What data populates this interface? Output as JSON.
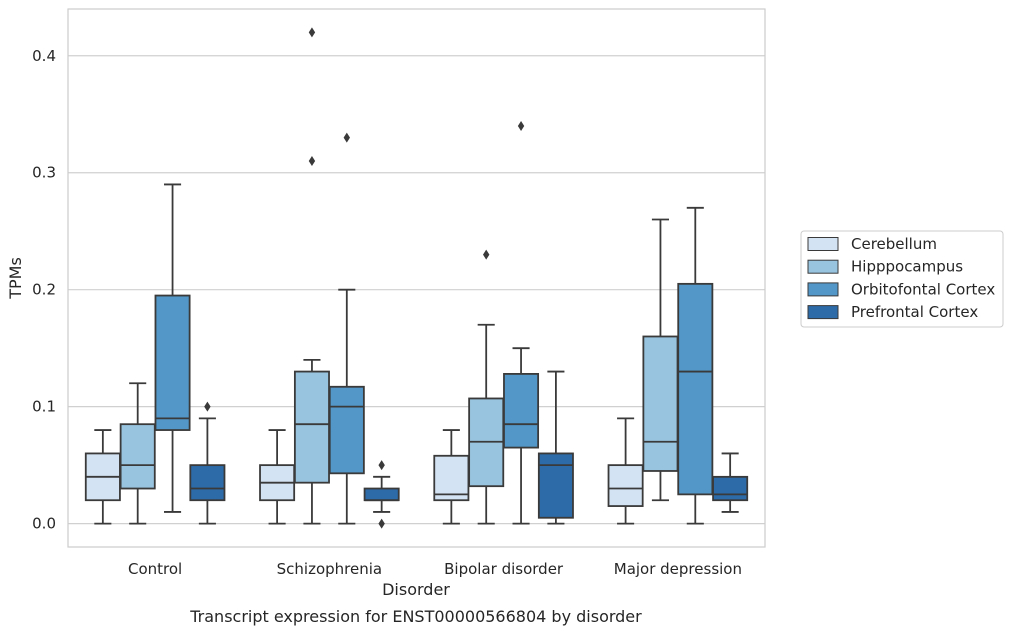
{
  "chart_data": {
    "type": "box",
    "title": "",
    "caption": "Transcript expression for ENST00000566804 by disorder",
    "xlabel": "Disorder",
    "ylabel": "TPMs",
    "ylim": [
      -0.02,
      0.44
    ],
    "yticks": [
      0.0,
      0.1,
      0.2,
      0.3,
      0.4
    ],
    "ytick_labels": [
      "0.0",
      "0.1",
      "0.2",
      "0.3",
      "0.4"
    ],
    "grid": "horizontal",
    "legend_position": "right",
    "categories": [
      "Control",
      "Schizophrenia",
      "Bipolar disorder",
      "Major depression"
    ],
    "series": [
      {
        "name": "Cerebellum",
        "color": "#d4e3f3",
        "boxes": [
          {
            "whislo": 0.0,
            "q1": 0.02,
            "med": 0.04,
            "q3": 0.06,
            "whishi": 0.08,
            "fliers": []
          },
          {
            "whislo": 0.0,
            "q1": 0.02,
            "med": 0.035,
            "q3": 0.05,
            "whishi": 0.08,
            "fliers": []
          },
          {
            "whislo": 0.0,
            "q1": 0.02,
            "med": 0.025,
            "q3": 0.058,
            "whishi": 0.08,
            "fliers": []
          },
          {
            "whislo": 0.0,
            "q1": 0.015,
            "med": 0.03,
            "q3": 0.05,
            "whishi": 0.09,
            "fliers": []
          }
        ]
      },
      {
        "name": "Hipppocampus",
        "color": "#99c4df",
        "boxes": [
          {
            "whislo": 0.0,
            "q1": 0.03,
            "med": 0.05,
            "q3": 0.085,
            "whishi": 0.12,
            "fliers": []
          },
          {
            "whislo": 0.0,
            "q1": 0.035,
            "med": 0.085,
            "q3": 0.13,
            "whishi": 0.14,
            "fliers": [
              0.42,
              0.31
            ]
          },
          {
            "whislo": 0.0,
            "q1": 0.032,
            "med": 0.07,
            "q3": 0.107,
            "whishi": 0.17,
            "fliers": [
              0.23
            ]
          },
          {
            "whislo": 0.02,
            "q1": 0.045,
            "med": 0.07,
            "q3": 0.16,
            "whishi": 0.26,
            "fliers": []
          }
        ]
      },
      {
        "name": "Orbitofontal Cortex",
        "color": "#5297c8",
        "boxes": [
          {
            "whislo": 0.01,
            "q1": 0.08,
            "med": 0.09,
            "q3": 0.195,
            "whishi": 0.29,
            "fliers": []
          },
          {
            "whislo": 0.0,
            "q1": 0.043,
            "med": 0.1,
            "q3": 0.117,
            "whishi": 0.2,
            "fliers": [
              0.33
            ]
          },
          {
            "whislo": 0.0,
            "q1": 0.065,
            "med": 0.085,
            "q3": 0.128,
            "whishi": 0.15,
            "fliers": [
              0.34
            ]
          },
          {
            "whislo": 0.0,
            "q1": 0.025,
            "med": 0.13,
            "q3": 0.205,
            "whishi": 0.27,
            "fliers": []
          }
        ]
      },
      {
        "name": "Prefrontal Cortex",
        "color": "#2c6aa8",
        "boxes": [
          {
            "whislo": 0.0,
            "q1": 0.02,
            "med": 0.03,
            "q3": 0.05,
            "whishi": 0.09,
            "fliers": [
              0.1
            ]
          },
          {
            "whislo": 0.01,
            "q1": 0.02,
            "med": 0.02,
            "q3": 0.03,
            "whishi": 0.04,
            "fliers": [
              0.05,
              0.0
            ]
          },
          {
            "whislo": 0.0,
            "q1": 0.005,
            "med": 0.05,
            "q3": 0.06,
            "whishi": 0.13,
            "fliers": []
          },
          {
            "whislo": 0.01,
            "q1": 0.02,
            "med": 0.025,
            "q3": 0.04,
            "whishi": 0.06,
            "fliers": []
          }
        ]
      }
    ]
  }
}
